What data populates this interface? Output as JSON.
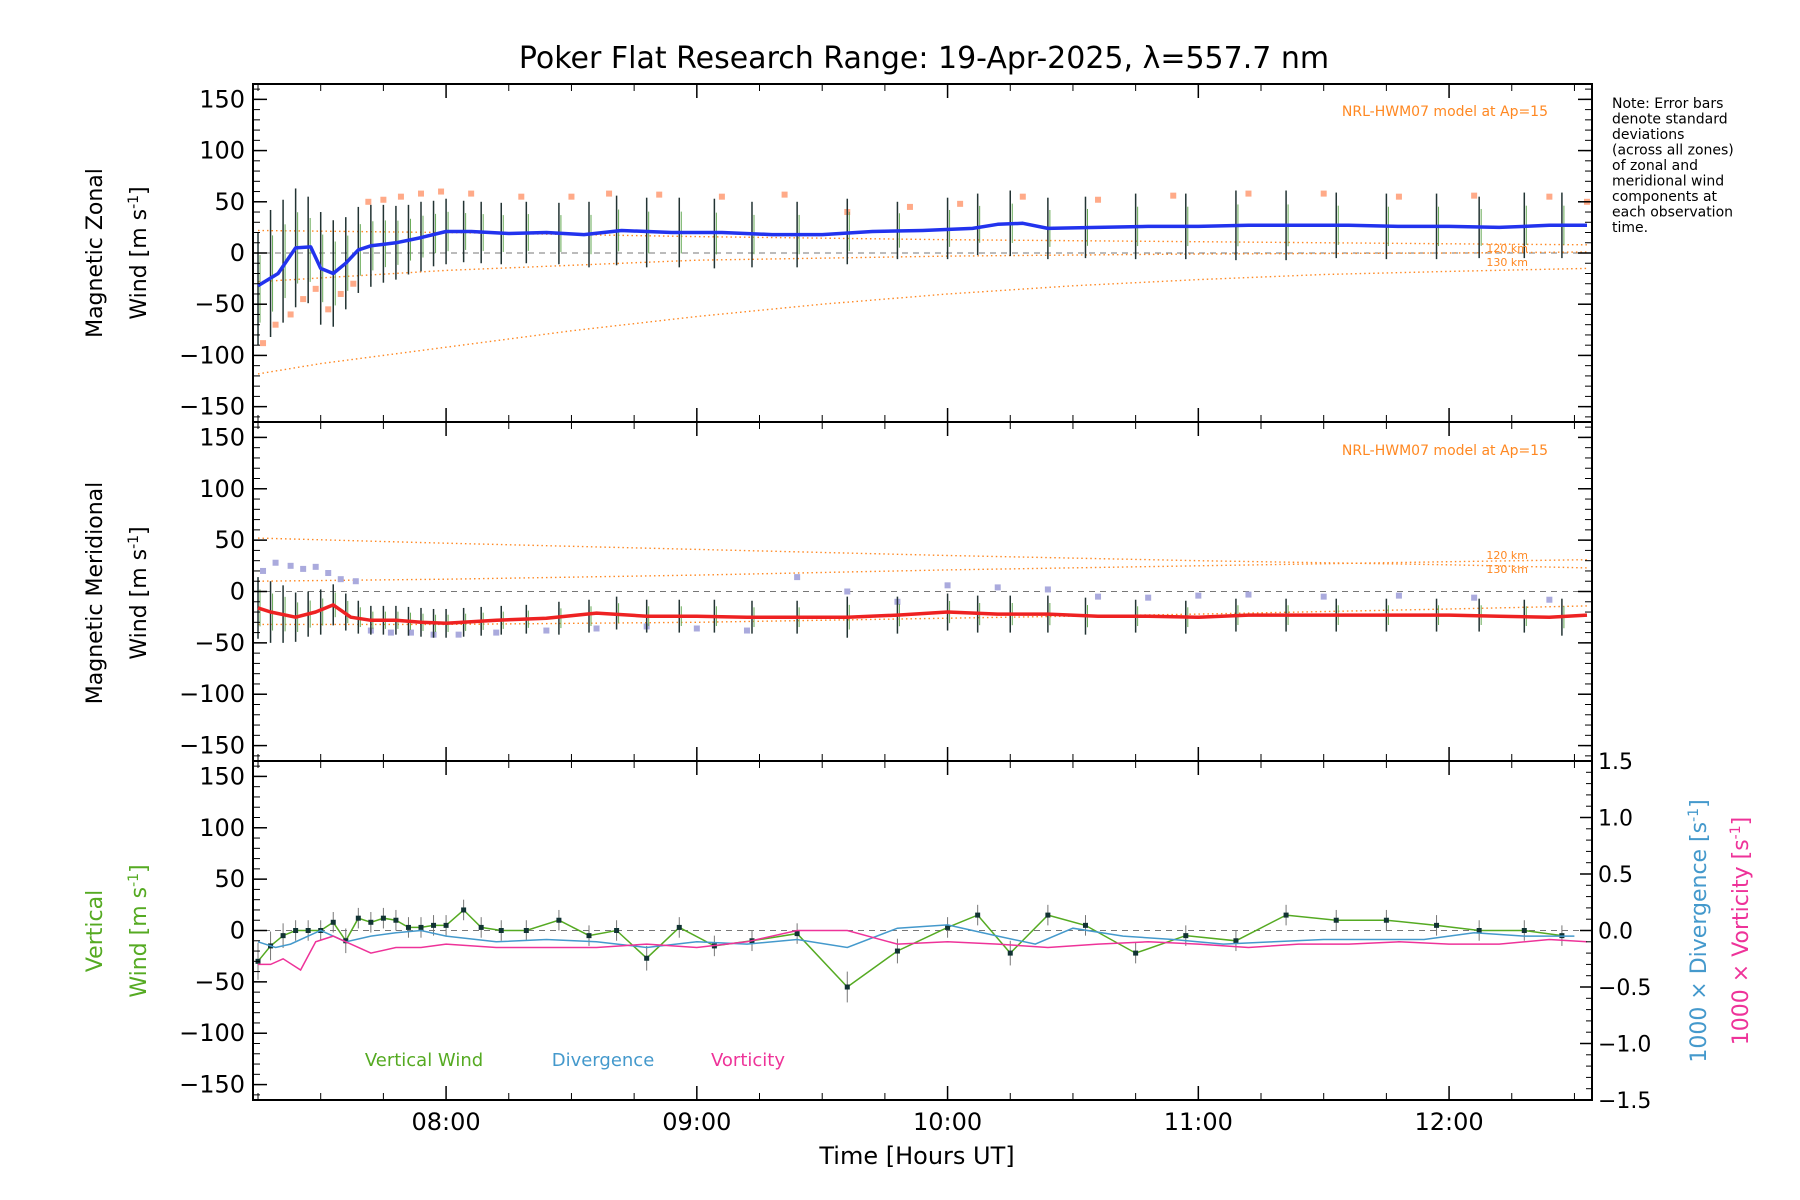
{
  "title": "Poker Flat Research Range: 19-Apr-2025, λ=557.7 nm",
  "note": [
    "Note: Error bars",
    "denote standard",
    "deviations",
    "(across all zones)",
    "of zonal and",
    "meridional wind",
    "components at",
    "each observation",
    "time."
  ],
  "colors": {
    "zonal": "#2233ee",
    "meridional": "#ee2222",
    "model": "#ff8822",
    "vertical": "#55aa22",
    "divergence": "#4499cc",
    "vorticity": "#ee3399",
    "samples_zonal": "#ffaa88",
    "samples_merid": "#aaaadd",
    "errorbar": "#223333"
  },
  "chart_data": [
    {
      "type": "line",
      "panel": "zonal",
      "ylabel_top": "Magnetic Zonal",
      "ylabel_main": "Wind ",
      "ylabel_unit": "[m s",
      "ylabel_sup": "-1",
      "ylabel_close": "]",
      "ylim": [
        -165,
        165
      ],
      "yticks": [
        -150,
        -100,
        -50,
        0,
        50,
        100,
        150
      ],
      "model_label": "NRL-HWM07 model at Ap=15",
      "model_series": [
        {
          "name": "120 km",
          "x": [
            7.25,
            8.0,
            9.0,
            10.0,
            11.0,
            12.0,
            12.55
          ],
          "values": [
            22,
            20,
            16,
            13,
            11,
            9,
            8
          ]
        },
        {
          "name": "130 km",
          "x": [
            7.25,
            8.0,
            9.0,
            10.0,
            11.0,
            12.0,
            12.55
          ],
          "values": [
            -28,
            -17,
            -7,
            -3,
            -1,
            0,
            1
          ]
        },
        {
          "name": "",
          "x": [
            7.25,
            7.5,
            8.0,
            8.5,
            9.0,
            9.5,
            10.0,
            10.5,
            11.0,
            11.5,
            12.0,
            12.55
          ],
          "values": [
            -118,
            -108,
            -92,
            -76,
            -62,
            -50,
            -40,
            -32,
            -26,
            -21,
            -18,
            -15
          ]
        }
      ],
      "mean": {
        "x": [
          7.25,
          7.33,
          7.4,
          7.46,
          7.5,
          7.55,
          7.6,
          7.65,
          7.7,
          7.8,
          7.9,
          8.0,
          8.1,
          8.25,
          8.4,
          8.55,
          8.7,
          8.9,
          9.1,
          9.3,
          9.5,
          9.7,
          9.9,
          10.1,
          10.2,
          10.3,
          10.4,
          10.6,
          10.8,
          11.0,
          11.2,
          11.4,
          11.6,
          11.8,
          12.0,
          12.2,
          12.4,
          12.55
        ],
        "values": [
          -32,
          -20,
          5,
          6,
          -15,
          -20,
          -10,
          3,
          7,
          10,
          15,
          21,
          21,
          19,
          20,
          18,
          22,
          20,
          20,
          18,
          18,
          21,
          22,
          24,
          28,
          29,
          24,
          25,
          26,
          26,
          27,
          27,
          27,
          26,
          26,
          25,
          27,
          27
        ]
      },
      "errorbars": {
        "x": [
          7.25,
          7.3,
          7.35,
          7.4,
          7.45,
          7.5,
          7.55,
          7.6,
          7.65,
          7.7,
          7.75,
          7.8,
          7.85,
          7.9,
          7.95,
          8.0,
          8.07,
          8.14,
          8.22,
          8.32,
          8.45,
          8.57,
          8.68,
          8.8,
          8.93,
          9.07,
          9.22,
          9.4,
          9.6,
          9.8,
          10.0,
          10.12,
          10.25,
          10.4,
          10.55,
          10.75,
          10.95,
          11.15,
          11.35,
          11.55,
          11.75,
          11.95,
          12.12,
          12.3,
          12.45
        ],
        "center": [
          -35,
          -20,
          -8,
          5,
          3,
          -15,
          -20,
          -10,
          3,
          7,
          9,
          10,
          13,
          16,
          19,
          21,
          21,
          20,
          19,
          20,
          19,
          18,
          22,
          20,
          20,
          19,
          18,
          18,
          21,
          22,
          24,
          28,
          29,
          24,
          25,
          26,
          26,
          27,
          27,
          27,
          26,
          26,
          25,
          27,
          27
        ],
        "half": [
          55,
          62,
          60,
          58,
          52,
          55,
          52,
          45,
          42,
          40,
          38,
          36,
          34,
          34,
          32,
          32,
          30,
          30,
          30,
          30,
          30,
          32,
          34,
          34,
          34,
          34,
          32,
          32,
          32,
          28,
          30,
          30,
          32,
          30,
          30,
          32,
          32,
          34,
          34,
          32,
          32,
          32,
          30,
          32,
          32
        ]
      },
      "samples": {
        "x": [
          7.27,
          7.32,
          7.38,
          7.43,
          7.48,
          7.53,
          7.58,
          7.63,
          7.69,
          7.75,
          7.82,
          7.9,
          7.98,
          8.1,
          8.3,
          8.5,
          8.65,
          8.85,
          9.1,
          9.35,
          9.6,
          9.85,
          10.05,
          10.3,
          10.6,
          10.9,
          11.2,
          11.5,
          11.8,
          12.1,
          12.4,
          12.55
        ],
        "values": [
          -88,
          -70,
          -60,
          -45,
          -35,
          -55,
          -40,
          -30,
          50,
          52,
          55,
          58,
          60,
          58,
          55,
          55,
          58,
          57,
          55,
          57,
          40,
          45,
          48,
          55,
          52,
          56,
          58,
          58,
          55,
          56,
          55,
          50
        ]
      }
    },
    {
      "type": "line",
      "panel": "meridional",
      "ylabel_top": "Magnetic Meridional",
      "ylabel_main": "Wind ",
      "ylabel_unit": "[m s",
      "ylabel_sup": "-1",
      "ylabel_close": "]",
      "ylim": [
        -165,
        165
      ],
      "yticks": [
        -150,
        -100,
        -50,
        0,
        50,
        100,
        150
      ],
      "model_label": "NRL-HWM07 model at Ap=15",
      "model_series": [
        {
          "name": "120 km",
          "x": [
            7.25,
            8.0,
            9.0,
            10.0,
            11.0,
            12.0,
            12.55
          ],
          "values": [
            52,
            47,
            41,
            35,
            30,
            26,
            23
          ]
        },
        {
          "name": "130 km",
          "x": [
            7.25,
            8.0,
            9.0,
            10.0,
            11.0,
            12.0,
            12.55
          ],
          "values": [
            10,
            12,
            16,
            21,
            25,
            29,
            31
          ]
        },
        {
          "name": "",
          "x": [
            7.25,
            8.0,
            9.0,
            10.0,
            11.0,
            12.0,
            12.55
          ],
          "values": [
            -32,
            -32,
            -30,
            -26,
            -22,
            -17,
            -14
          ]
        }
      ],
      "mean": {
        "x": [
          7.25,
          7.3,
          7.4,
          7.48,
          7.55,
          7.62,
          7.7,
          7.8,
          7.9,
          8.0,
          8.2,
          8.4,
          8.6,
          8.8,
          9.0,
          9.2,
          9.4,
          9.6,
          9.8,
          10.0,
          10.2,
          10.4,
          10.6,
          10.8,
          11.0,
          11.2,
          11.4,
          11.6,
          11.8,
          12.0,
          12.2,
          12.4,
          12.55
        ],
        "values": [
          -16,
          -20,
          -25,
          -20,
          -13,
          -25,
          -28,
          -28,
          -30,
          -31,
          -28,
          -26,
          -21,
          -24,
          -24,
          -25,
          -25,
          -25,
          -23,
          -20,
          -22,
          -22,
          -24,
          -24,
          -25,
          -23,
          -23,
          -23,
          -23,
          -23,
          -24,
          -25,
          -23
        ]
      },
      "errorbars": {
        "x": [
          7.25,
          7.3,
          7.35,
          7.4,
          7.45,
          7.5,
          7.55,
          7.6,
          7.65,
          7.7,
          7.75,
          7.8,
          7.85,
          7.9,
          7.95,
          8.0,
          8.07,
          8.14,
          8.22,
          8.32,
          8.45,
          8.57,
          8.68,
          8.8,
          8.93,
          9.07,
          9.22,
          9.4,
          9.6,
          9.8,
          10.0,
          10.12,
          10.25,
          10.4,
          10.55,
          10.75,
          10.95,
          11.15,
          11.35,
          11.55,
          11.75,
          11.95,
          12.12,
          12.3,
          12.45
        ],
        "center": [
          -16,
          -20,
          -22,
          -25,
          -22,
          -20,
          -13,
          -20,
          -25,
          -28,
          -28,
          -28,
          -29,
          -30,
          -31,
          -31,
          -30,
          -29,
          -28,
          -27,
          -26,
          -24,
          -21,
          -24,
          -24,
          -24,
          -25,
          -25,
          -25,
          -23,
          -20,
          -22,
          -22,
          -22,
          -24,
          -24,
          -25,
          -23,
          -23,
          -23,
          -23,
          -23,
          -23,
          -24,
          -25
        ],
        "half": [
          30,
          30,
          28,
          24,
          22,
          22,
          20,
          18,
          16,
          14,
          14,
          14,
          14,
          14,
          14,
          14,
          14,
          14,
          14,
          14,
          16,
          16,
          16,
          16,
          16,
          16,
          16,
          16,
          20,
          18,
          18,
          18,
          18,
          18,
          18,
          16,
          16,
          16,
          16,
          16,
          16,
          16,
          16,
          16,
          18
        ]
      },
      "samples": {
        "x": [
          7.27,
          7.32,
          7.38,
          7.43,
          7.48,
          7.53,
          7.58,
          7.64,
          7.7,
          7.78,
          7.86,
          7.95,
          8.05,
          8.2,
          8.4,
          8.6,
          8.8,
          9.0,
          9.2,
          9.4,
          9.6,
          9.8,
          10.0,
          10.2,
          10.4,
          10.6,
          10.8,
          11.0,
          11.2,
          11.5,
          11.8,
          12.1,
          12.4
        ],
        "values": [
          20,
          28,
          25,
          22,
          24,
          18,
          12,
          10,
          -38,
          -40,
          -40,
          -42,
          -42,
          -40,
          -38,
          -36,
          -34,
          -36,
          -38,
          14,
          0,
          -10,
          6,
          4,
          2,
          -5,
          -6,
          -4,
          -3,
          -5,
          -4,
          -6,
          -8
        ]
      }
    },
    {
      "type": "line",
      "panel": "vertical",
      "ylabel_top": "Vertical",
      "ylabel_main": "Wind ",
      "ylabel_unit": "[m s",
      "ylabel_sup": "-1",
      "ylabel_close": "]",
      "ylim": [
        -165,
        165
      ],
      "yticks": [
        -150,
        -100,
        -50,
        0,
        50,
        100,
        150
      ],
      "y2label_div_main": "1000 × Divergence ",
      "y2label_div_unit": "[s",
      "y2label_div_sup": "-1",
      "y2label_div_close": "]",
      "y2label_vor_main": "1000 × Vorticity ",
      "y2label_vor_unit": "[s",
      "y2label_vor_sup": "-1",
      "y2label_vor_close": "]",
      "y2lim": [
        -1.5,
        1.5
      ],
      "y2ticks": [
        -1.5,
        -1.0,
        -0.5,
        0.0,
        0.5,
        1.0,
        1.5
      ],
      "y2ticklabels": [
        "−1.5",
        "−1.0",
        "−0.5",
        "0.0",
        "0.5",
        "1.0",
        "1.5"
      ],
      "legend": [
        "Vertical Wind",
        "Divergence",
        "Vorticity"
      ],
      "series": [
        {
          "name": "Vertical Wind",
          "axis": "left",
          "x": [
            7.25,
            7.3,
            7.35,
            7.4,
            7.45,
            7.5,
            7.55,
            7.6,
            7.65,
            7.7,
            7.75,
            7.8,
            7.85,
            7.9,
            7.95,
            8.0,
            8.07,
            8.14,
            8.22,
            8.32,
            8.45,
            8.57,
            8.68,
            8.8,
            8.93,
            9.07,
            9.22,
            9.4,
            9.6,
            9.8,
            10.0,
            10.12,
            10.25,
            10.4,
            10.55,
            10.75,
            10.95,
            11.15,
            11.35,
            11.55,
            11.75,
            11.95,
            12.12,
            12.3,
            12.45
          ],
          "values": [
            -30,
            -15,
            -5,
            0,
            0,
            0,
            8,
            -10,
            12,
            8,
            12,
            10,
            3,
            3,
            5,
            5,
            20,
            3,
            0,
            0,
            10,
            -5,
            0,
            -27,
            3,
            -15,
            -10,
            -3,
            -55,
            -20,
            3,
            15,
            -22,
            15,
            5,
            -22,
            -5,
            -10,
            15,
            10,
            10,
            5,
            0,
            0,
            -5
          ],
          "err": [
            18,
            14,
            12,
            10,
            10,
            10,
            10,
            12,
            10,
            10,
            10,
            10,
            10,
            10,
            10,
            10,
            10,
            10,
            10,
            10,
            10,
            10,
            10,
            12,
            10,
            10,
            10,
            10,
            15,
            12,
            10,
            10,
            12,
            10,
            10,
            10,
            10,
            10,
            10,
            10,
            10,
            10,
            10,
            10,
            10
          ]
        },
        {
          "name": "Divergence",
          "axis": "right",
          "x": [
            7.25,
            7.32,
            7.38,
            7.45,
            7.5,
            7.6,
            7.7,
            7.8,
            7.9,
            8.0,
            8.2,
            8.4,
            8.6,
            8.8,
            9.0,
            9.2,
            9.4,
            9.6,
            9.8,
            10.0,
            10.1,
            10.2,
            10.35,
            10.5,
            10.7,
            10.9,
            11.1,
            11.3,
            11.5,
            11.7,
            11.9,
            12.1,
            12.3,
            12.5
          ],
          "values": [
            -0.1,
            -0.15,
            -0.12,
            -0.05,
            0.0,
            -0.1,
            -0.05,
            -0.02,
            0.0,
            -0.05,
            -0.1,
            -0.08,
            -0.1,
            -0.15,
            -0.1,
            -0.12,
            -0.08,
            -0.15,
            0.02,
            0.05,
            0.0,
            -0.05,
            -0.12,
            0.02,
            -0.05,
            -0.08,
            -0.12,
            -0.1,
            -0.08,
            -0.08,
            -0.08,
            -0.02,
            -0.05,
            -0.05
          ]
        },
        {
          "name": "Vorticity",
          "axis": "right",
          "x": [
            7.25,
            7.3,
            7.35,
            7.42,
            7.48,
            7.55,
            7.6,
            7.7,
            7.8,
            7.9,
            8.0,
            8.2,
            8.4,
            8.6,
            8.8,
            9.0,
            9.2,
            9.4,
            9.6,
            9.8,
            10.0,
            10.2,
            10.4,
            10.6,
            10.8,
            11.0,
            11.2,
            11.4,
            11.6,
            11.8,
            12.0,
            12.2,
            12.4,
            12.55
          ],
          "values": [
            -0.3,
            -0.3,
            -0.25,
            -0.35,
            -0.1,
            -0.05,
            -0.1,
            -0.2,
            -0.15,
            -0.15,
            -0.12,
            -0.15,
            -0.15,
            -0.15,
            -0.12,
            -0.15,
            -0.1,
            0.0,
            0.0,
            -0.12,
            -0.1,
            -0.12,
            -0.15,
            -0.12,
            -0.1,
            -0.12,
            -0.15,
            -0.12,
            -0.12,
            -0.1,
            -0.12,
            -0.12,
            -0.08,
            -0.1
          ]
        }
      ]
    }
  ],
  "xaxis": {
    "xlabel_main": "Time ",
    "xlabel_unit": "[Hours UT]",
    "xlim": [
      7.23,
      12.57
    ],
    "xticks": [
      8,
      9,
      10,
      11,
      12
    ],
    "xticklabels": [
      "08:00",
      "09:00",
      "10:00",
      "11:00",
      "12:00"
    ]
  }
}
